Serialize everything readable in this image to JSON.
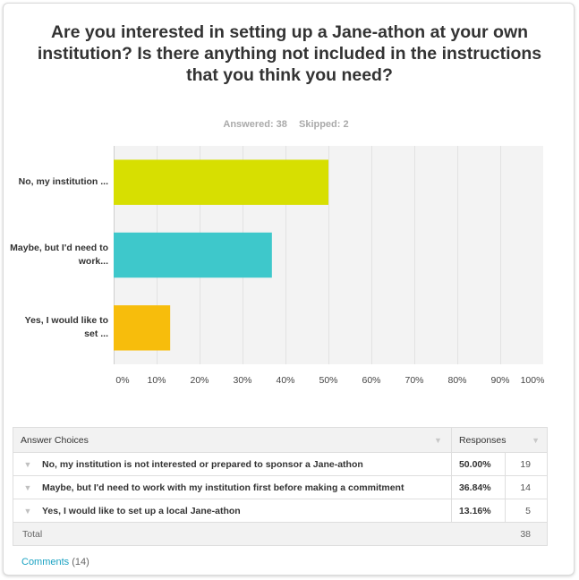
{
  "question": {
    "title": "Are you interested in setting up a Jane-athon at your own institution? Is there anything not included in the instructions that you think you need?",
    "answered": "Answered: 38",
    "skipped": "Skipped: 2"
  },
  "chart_data": {
    "type": "bar",
    "orientation": "horizontal",
    "categories": [
      "No, my institution ...",
      "Maybe, but I'd need to work...",
      "Yes, I would like to set ..."
    ],
    "values": [
      50.0,
      36.84,
      13.16
    ],
    "colors": [
      "#d7df01",
      "#3ec8cb",
      "#f7bd0c"
    ],
    "xlim": [
      0,
      100
    ],
    "xticks": [
      "0%",
      "10%",
      "20%",
      "30%",
      "40%",
      "50%",
      "60%",
      "70%",
      "80%",
      "90%",
      "100%"
    ],
    "grid": true
  },
  "table": {
    "header_choices": "Answer Choices",
    "header_responses": "Responses",
    "rows": [
      {
        "choice": "No, my institution is not interested or prepared to sponsor a Jane-athon",
        "percent": "50.00%",
        "count": "19"
      },
      {
        "choice": "Maybe, but I'd need to work with my institution first before making a commitment",
        "percent": "36.84%",
        "count": "14"
      },
      {
        "choice": "Yes, I would like to set up a local Jane-athon",
        "percent": "13.16%",
        "count": "5"
      }
    ],
    "total_label": "Total",
    "total_value": "38"
  },
  "comments": {
    "label": "Comments",
    "count": "(14)"
  }
}
